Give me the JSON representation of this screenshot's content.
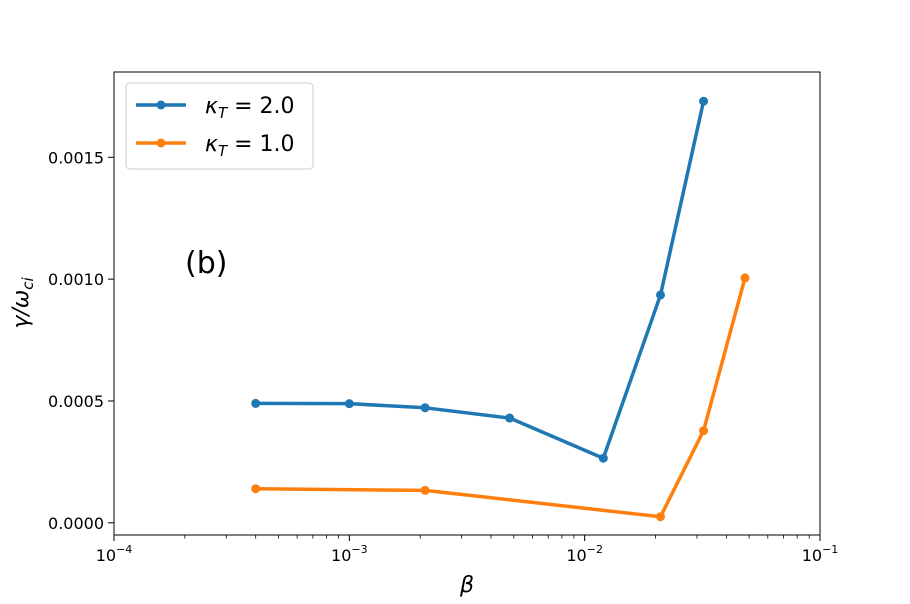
{
  "chart_data": {
    "type": "line",
    "xscale": "log",
    "xlim": [
      0.0001,
      0.1
    ],
    "ylim": [
      -5e-05,
      0.00185
    ],
    "xlabel": "β",
    "ylabel": "γ/ω",
    "ylabel_sub": "ci",
    "grid": false,
    "legend_placement": "top-left",
    "annotation": "(b)",
    "x_ticks": [
      {
        "value": 0.0001,
        "base": "10",
        "exp": "−4"
      },
      {
        "value": 0.001,
        "base": "10",
        "exp": "−3"
      },
      {
        "value": 0.01,
        "base": "10",
        "exp": "−2"
      },
      {
        "value": 0.1,
        "base": "10",
        "exp": "−1"
      }
    ],
    "y_ticks": [
      {
        "value": 0.0,
        "label": "0.0000"
      },
      {
        "value": 0.0005,
        "label": "0.0005"
      },
      {
        "value": 0.001,
        "label": "0.0010"
      },
      {
        "value": 0.0015,
        "label": "0.0015"
      }
    ],
    "series": [
      {
        "name_symbol": "κ",
        "name_sub": "T",
        "name_value": " = 2.0",
        "color": "#1f77b4",
        "x": [
          0.0004,
          0.001,
          0.0021,
          0.0048,
          0.012,
          0.021,
          0.032
        ],
        "y": [
          0.00049,
          0.000489,
          0.000472,
          0.00043,
          0.000265,
          0.000935,
          0.00173
        ]
      },
      {
        "name_symbol": "κ",
        "name_sub": "T",
        "name_value": " = 1.0",
        "color": "#ff7f0e",
        "x": [
          0.0004,
          0.0021,
          0.021,
          0.032,
          0.048
        ],
        "y": [
          0.00014,
          0.000133,
          2.5e-05,
          0.000378,
          0.001005
        ]
      }
    ]
  }
}
